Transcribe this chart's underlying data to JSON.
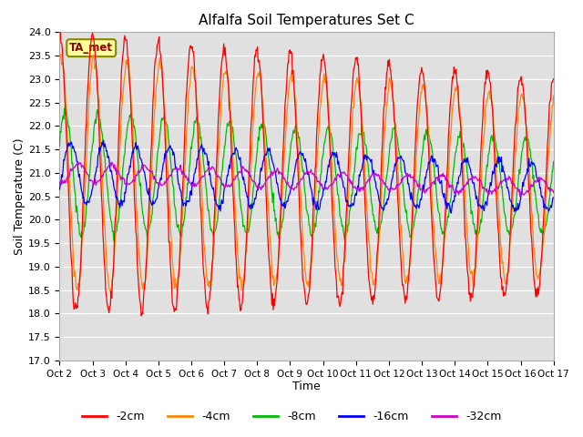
{
  "title": "Alfalfa Soil Temperatures Set C",
  "xlabel": "Time",
  "ylabel": "Soil Temperature (C)",
  "ylim": [
    17.0,
    24.0
  ],
  "yticks": [
    17.0,
    17.5,
    18.0,
    18.5,
    19.0,
    19.5,
    20.0,
    20.5,
    21.0,
    21.5,
    22.0,
    22.5,
    23.0,
    23.5,
    24.0
  ],
  "xtick_labels": [
    "Oct 2",
    "Oct 3",
    "Oct 4",
    "Oct 5",
    "Oct 6",
    "Oct 7",
    "Oct 8",
    "Oct 9",
    "Oct 10",
    "Oct 11",
    "Oct 12",
    "Oct 13",
    "Oct 14",
    "Oct 15",
    "Oct 16",
    "Oct 17"
  ],
  "line_colors": {
    "-2cm": "#ff0000",
    "-4cm": "#ff8800",
    "-8cm": "#00bb00",
    "-16cm": "#0000ff",
    "-32cm": "#cc00cc"
  },
  "legend_labels": [
    "-2cm",
    "-4cm",
    "-8cm",
    "-16cm",
    "-32cm"
  ],
  "annotation_text": "TA_met",
  "annotation_bg": "#ffff99",
  "annotation_border": "#888800",
  "plot_bg_color": "#e0e0e0",
  "fig_bg_color": "#ffffff",
  "figsize": [
    6.4,
    4.8
  ],
  "dpi": 100,
  "n_days": 15,
  "points_per_day": 48,
  "amp_2": 3.0,
  "amp_4": 2.5,
  "amp_8": 1.3,
  "amp_16": 0.65,
  "amp_32": 0.2,
  "mean_base": 21.0,
  "mean_trend": -0.02
}
